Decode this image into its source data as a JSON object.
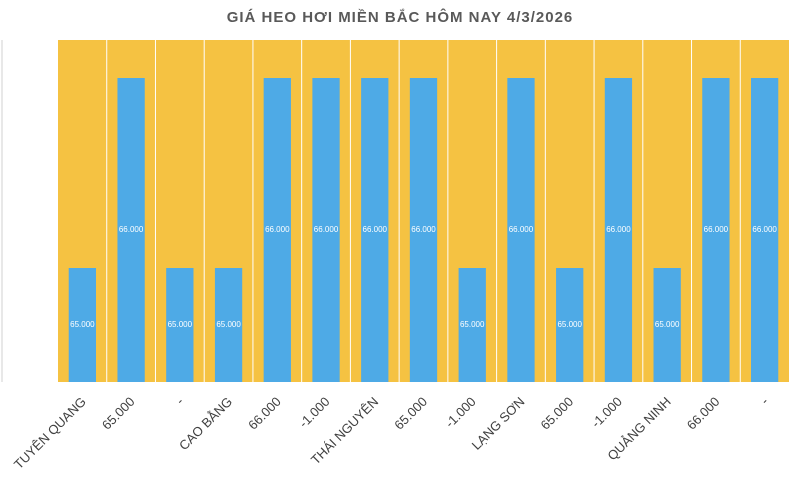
{
  "chart_data": {
    "type": "bar",
    "title": "GIÁ HEO HƠI MIỀN BẮC HÔM NAY 4/3/2026",
    "categories": [
      "TUYÊN QUANG",
      "65.000",
      "-",
      "CAO BẰNG",
      "66.000",
      "-1.000",
      "THÁI NGUYÊN",
      "65.000",
      "-1.000",
      "LẠNG SƠN",
      "65.000",
      "-1.000",
      "QUẢNG NINH",
      "66.000",
      "-"
    ],
    "values": [
      65000,
      66000,
      65000,
      65000,
      66000,
      66000,
      66000,
      66000,
      65000,
      66000,
      65000,
      66000,
      65000,
      66000,
      66000
    ],
    "value_labels": [
      "65.000",
      "66.000",
      "65.000",
      "65.000",
      "66.000",
      "66.000",
      "66.000",
      "66.000",
      "65.000",
      "66.000",
      "65.000",
      "66.000",
      "65.000",
      "66.000",
      "66.000"
    ],
    "color": "#4eaae6",
    "background": "#f5c242",
    "ylim": [
      64400,
      66200
    ]
  }
}
